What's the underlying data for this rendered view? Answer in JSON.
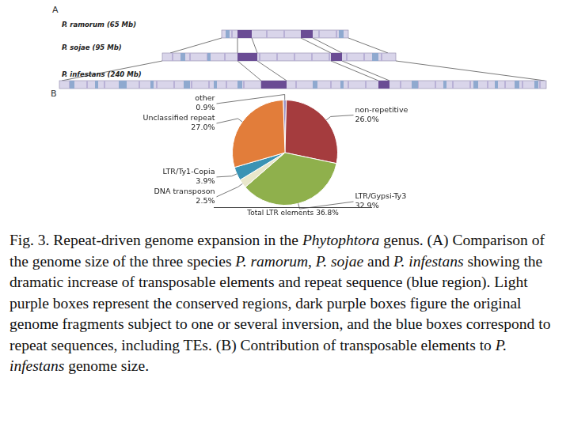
{
  "panel_a": {
    "label": "A",
    "genomes": [
      {
        "label": "P. ramorum (65 Mb)"
      },
      {
        "label": "P. sojae (95 Mb)"
      },
      {
        "label": "P. infestans (240 Mb)"
      }
    ]
  },
  "panel_b": {
    "label": "B"
  },
  "chart_data": {
    "type": "pie",
    "categories": [
      "other",
      "non-repetitive",
      "LTR/Gypsi-Ty3",
      "DNA transposon",
      "LTR/Ty1-Copia",
      "Unclassified repeat"
    ],
    "values": [
      0.9,
      26.0,
      32.9,
      2.5,
      3.9,
      27.0
    ],
    "value_labels": [
      "0.9%",
      "26.0%",
      "32.9%",
      "2.5%",
      "3.9%",
      "27.0%"
    ],
    "colors": [
      "#9c94c8",
      "#a53c3e",
      "#8fb04c",
      "#e9e7cb",
      "#3a93b4",
      "#e27d3a"
    ],
    "data_labels": true,
    "annotation": "Total LTR elements 36.8%"
  },
  "caption": [
    {
      "text": "Fig. 3. Repeat-driven genome expansion in the ",
      "italic": false
    },
    {
      "text": "Phytophtora",
      "italic": true
    },
    {
      "text": " genus. (A) Comparison of the genome size of the three species ",
      "italic": false
    },
    {
      "text": "P. ramorum",
      "italic": true
    },
    {
      "text": ", ",
      "italic": false
    },
    {
      "text": "P. sojae",
      "italic": true
    },
    {
      "text": " and ",
      "italic": false
    },
    {
      "text": "P. infestans",
      "italic": true
    },
    {
      "text": " showing the dramatic increase of transposable elements and repeat sequence (blue region). Light purple boxes represent the conserved regions, dark purple boxes figure the original genome fragments subject to one or several inversion, and the blue boxes correspond to repeat sequences, including TEs. (B) Contribution of transposable elements to ",
      "italic": false
    },
    {
      "text": "P. infestans",
      "italic": true
    },
    {
      "text": " genome size.",
      "italic": false
    }
  ]
}
